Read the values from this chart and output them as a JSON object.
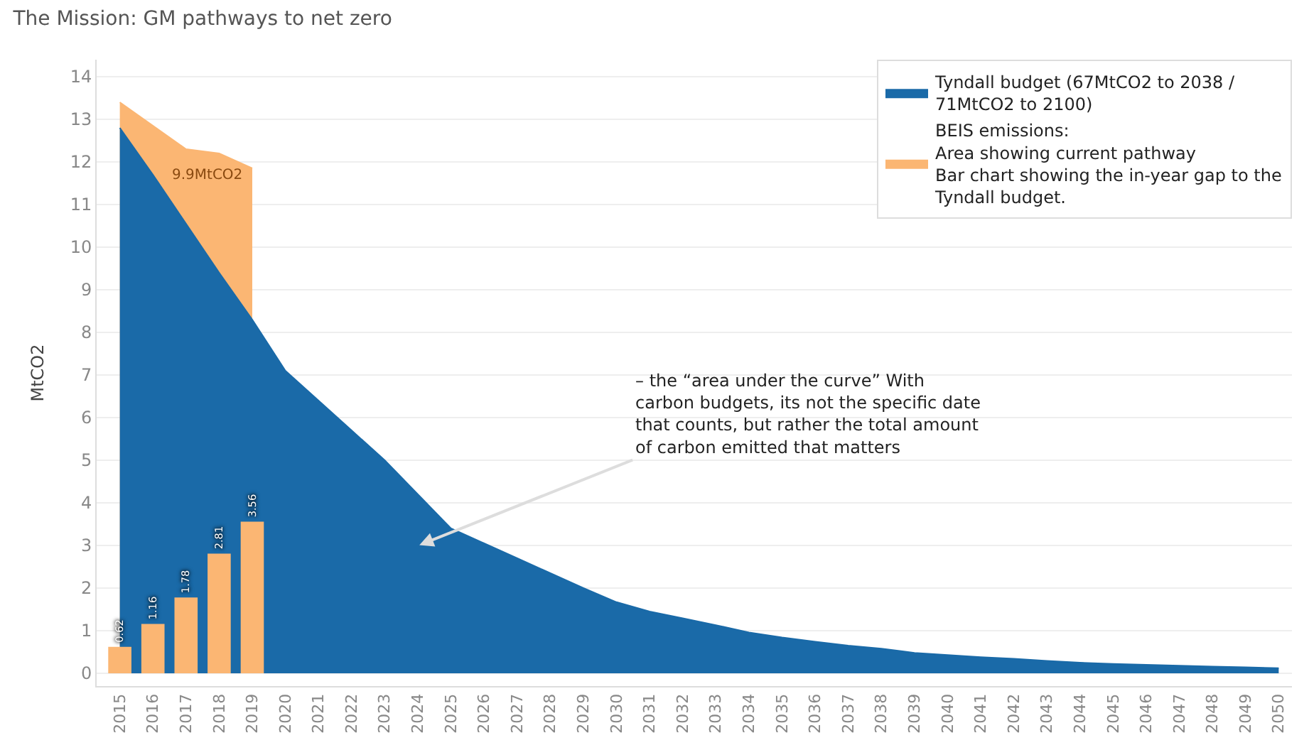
{
  "chart_data": {
    "type": "area",
    "title": "The Mission: GM pathways to net zero",
    "ylabel": "MtCO2",
    "categories": [
      "2015",
      "2016",
      "2017",
      "2018",
      "2019",
      "2020",
      "2021",
      "2022",
      "2023",
      "2024",
      "2025",
      "2026",
      "2027",
      "2028",
      "2029",
      "2030",
      "2031",
      "2032",
      "2033",
      "2034",
      "2035",
      "2036",
      "2037",
      "2038",
      "2039",
      "2040",
      "2041",
      "2042",
      "2043",
      "2044",
      "2045",
      "2046",
      "2047",
      "2048",
      "2049",
      "2050"
    ],
    "series": [
      {
        "name": "BEIS emissions:\nArea showing current pathway\nBar chart showing the in-year gap to the\nTyndall budget.",
        "color": "#fbb673",
        "values": [
          13.4,
          12.85,
          12.3,
          12.2,
          11.85,
          null,
          null,
          null,
          null,
          null,
          null,
          null,
          null,
          null,
          null,
          null,
          null,
          null,
          null,
          null,
          null,
          null,
          null,
          null,
          null,
          null,
          null,
          null,
          null,
          null,
          null,
          null,
          null,
          null,
          null,
          null
        ]
      },
      {
        "name": "Tyndall budget (67MtCO2 to 2038 /\n71MtCO2 to 2100)",
        "color": "#1a6aa8",
        "values": [
          12.8,
          11.7,
          10.55,
          9.4,
          8.3,
          7.1,
          6.4,
          5.7,
          5.0,
          4.2,
          3.4,
          3.05,
          2.7,
          2.35,
          2.0,
          1.67,
          1.45,
          1.29,
          1.13,
          0.96,
          0.84,
          0.74,
          0.65,
          0.58,
          0.48,
          0.43,
          0.38,
          0.34,
          0.29,
          0.25,
          0.22,
          0.2,
          0.18,
          0.16,
          0.14,
          0.12
        ]
      },
      {
        "type": "bar",
        "color": "#fbb673",
        "values": [
          0.62,
          1.16,
          1.78,
          2.81,
          3.56,
          null,
          null,
          null,
          null,
          null,
          null,
          null,
          null,
          null,
          null,
          null,
          null,
          null,
          null,
          null,
          null,
          null,
          null,
          null,
          null,
          null,
          null,
          null,
          null,
          null,
          null,
          null,
          null,
          null,
          null,
          null
        ],
        "value_labels": [
          "0.62",
          "1.16",
          "1.78",
          "2.81",
          "3.56",
          null,
          null,
          null,
          null,
          null,
          null,
          null,
          null,
          null,
          null,
          null,
          null,
          null,
          null,
          null,
          null,
          null,
          null,
          null,
          null,
          null,
          null,
          null,
          null,
          null,
          null,
          null,
          null,
          null,
          null,
          null
        ]
      }
    ],
    "ylim": [
      -0.3,
      14.4
    ],
    "yticks": [
      0,
      1,
      2,
      3,
      4,
      5,
      6,
      7,
      8,
      9,
      10,
      11,
      12,
      13,
      14
    ],
    "grid": "y",
    "legend": "top right",
    "annotations": [
      "9.9MtCO2",
      "– the “area under the curve” With\ncarbon budgets, its not the specific date\nthat counts, but rather the total amount\nof carbon emitted that matters"
    ]
  }
}
